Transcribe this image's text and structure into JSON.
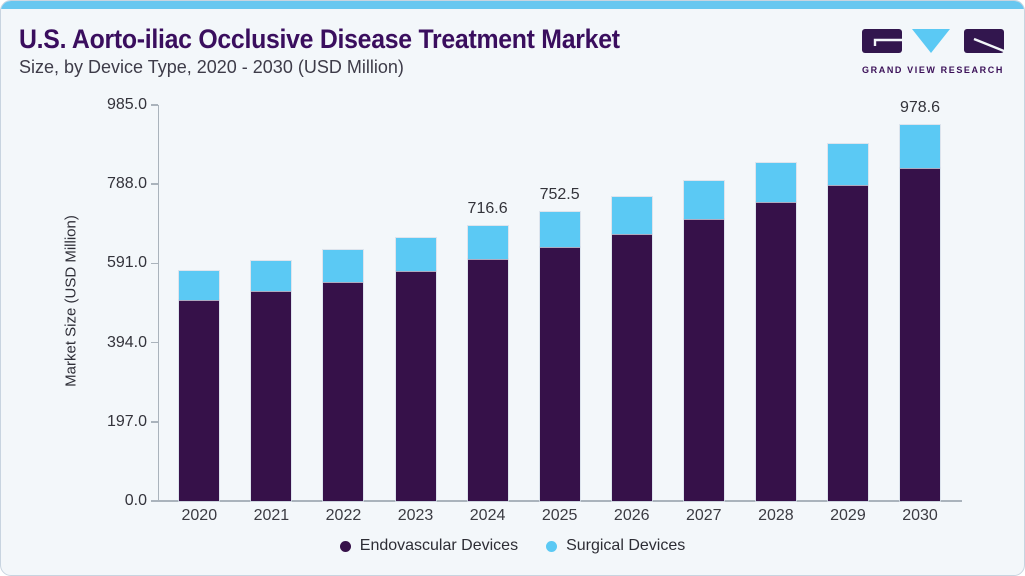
{
  "header": {
    "title": "U.S. Aorto-iliac Occlusive Disease Treatment Market",
    "subtitle": "Size, by Device Type, 2020 - 2030 (USD Million)",
    "logo_text": "GRAND VIEW RESEARCH"
  },
  "colors": {
    "endovascular": "#361149",
    "surgical": "#5BC9F4",
    "top_strip": "#68C7F0",
    "title_text": "#3A0E5E",
    "card_background": "#F3F7FA",
    "axis_line": "#AAB3BC",
    "logo_purple": "#32164E"
  },
  "chart_data": {
    "type": "bar",
    "stacked": true,
    "title": "U.S. Aorto-iliac Occlusive Disease Treatment Market Size, by Device Type, 2020 - 2030 (USD Million)",
    "categories": [
      "2020",
      "2021",
      "2022",
      "2023",
      "2024",
      "2025",
      "2026",
      "2027",
      "2028",
      "2029",
      "2030"
    ],
    "series": [
      {
        "name": "Endovascular Devices",
        "color": "#361149",
        "values": [
          522.2,
          545.6,
          570.9,
          597.7,
          628.9,
          661.2,
          695.8,
          734.0,
          778.2,
          822.5,
          867.5
        ]
      },
      {
        "name": "Surgical Devices",
        "color": "#5BC9F4",
        "values": [
          77.3,
          79.9,
          82.5,
          85.8,
          87.7,
          91.3,
          95.5,
          98.9,
          102.3,
          105.6,
          111.1
        ]
      }
    ],
    "totals": [
      599.5,
      625.5,
      653.4,
      683.5,
      716.6,
      752.5,
      791.3,
      832.9,
      880.5,
      928.1,
      978.6
    ],
    "visible_total_labels": {
      "2024": "716.6",
      "2025": "752.5",
      "2030": "978.6"
    },
    "ylabel": "Market Size (USD Million)",
    "xlabel": "",
    "yticks": [
      0,
      197,
      394,
      591,
      788,
      985
    ],
    "ytick_labels": [
      "0.0",
      "197.0",
      "394.0",
      "591.0",
      "788.0",
      "985.0"
    ],
    "ylim": [
      0,
      985
    ],
    "grid": false,
    "legend_position": "bottom"
  },
  "legend": {
    "items": [
      {
        "label": "Endovascular Devices",
        "color": "#361149"
      },
      {
        "label": "Surgical Devices",
        "color": "#5BC9F4"
      }
    ]
  }
}
